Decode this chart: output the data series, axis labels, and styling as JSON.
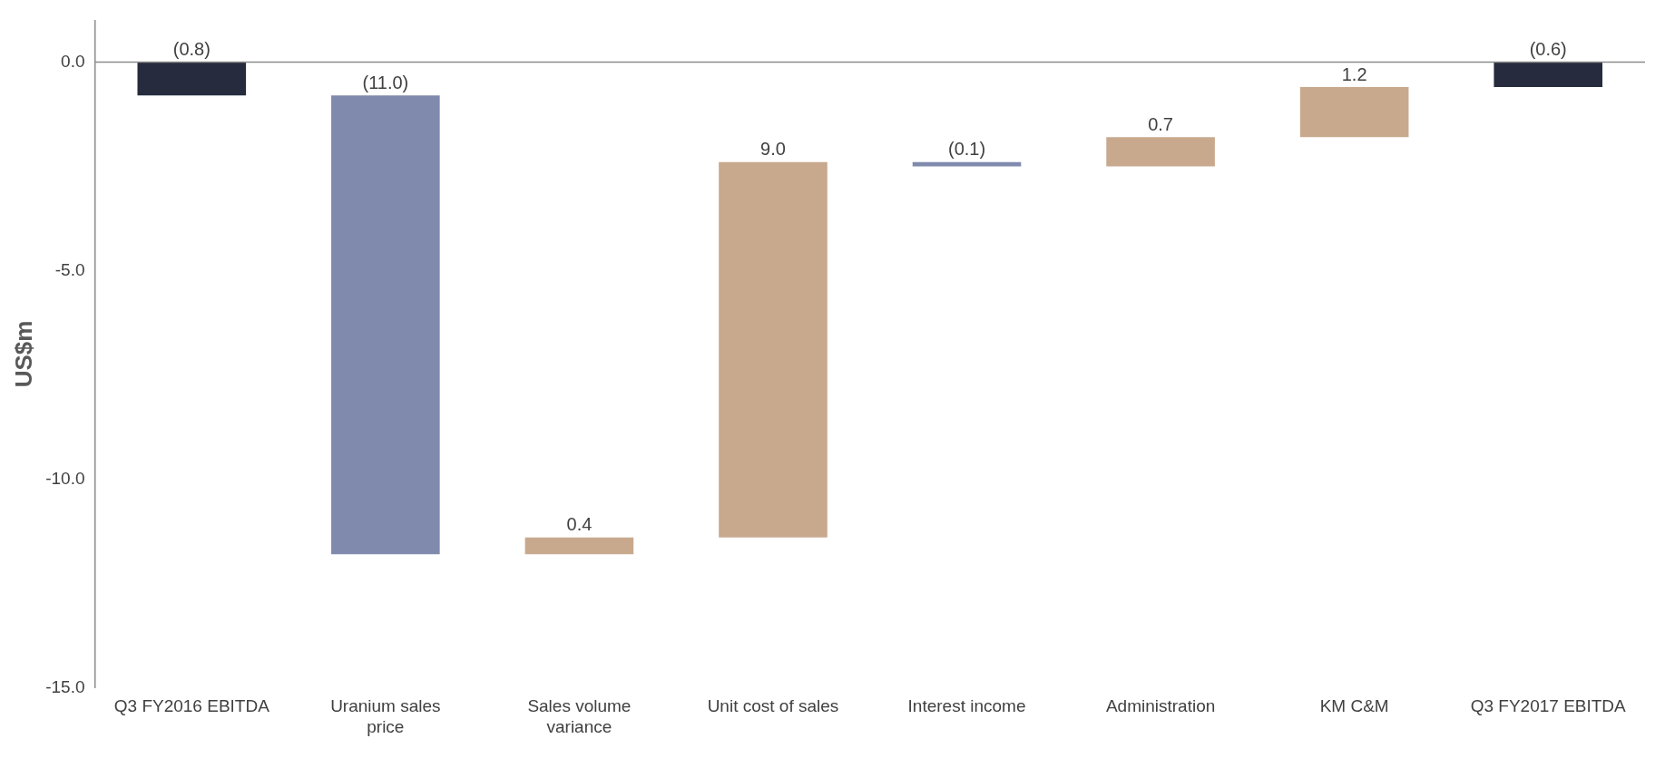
{
  "chart_data": {
    "type": "bar",
    "ylabel": "US$m",
    "categories": [
      "Q3 FY2016 EBITDA",
      "Uranium sales price",
      "Sales volume variance",
      "Unit cost of sales",
      "Interest income",
      "Administration",
      "KM C&M",
      "Q3 FY2017 EBITDA"
    ],
    "values": [
      -0.8,
      -11.0,
      0.4,
      9.0,
      -0.1,
      0.7,
      1.2,
      -0.6
    ],
    "base": [
      0,
      -0.8,
      -11.8,
      -11.4,
      -2.4,
      -2.5,
      -1.8,
      0
    ],
    "colors": [
      "#262b3d",
      "#7f8aad",
      "#c8a98e",
      "#c8a98e",
      "#7f8aad",
      "#c8a98e",
      "#c8a98e",
      "#262b3d"
    ],
    "value_labels": [
      "(0.8)",
      "(11.0)",
      "0.4",
      "9.0",
      "(0.1)",
      "0.7",
      "1.2",
      "(0.6)"
    ],
    "ylim": [
      -15,
      1
    ],
    "yticks": [
      {
        "value": 0,
        "label": "0.0"
      },
      {
        "value": -5,
        "label": "-5.0"
      },
      {
        "value": -10,
        "label": "-10.0"
      },
      {
        "value": -15,
        "label": "-15.0"
      }
    ],
    "ref_lines": [
      {
        "axis": "y",
        "value": 0,
        "color": "#8c8c8c"
      }
    ],
    "grid": false,
    "legend": false
  }
}
